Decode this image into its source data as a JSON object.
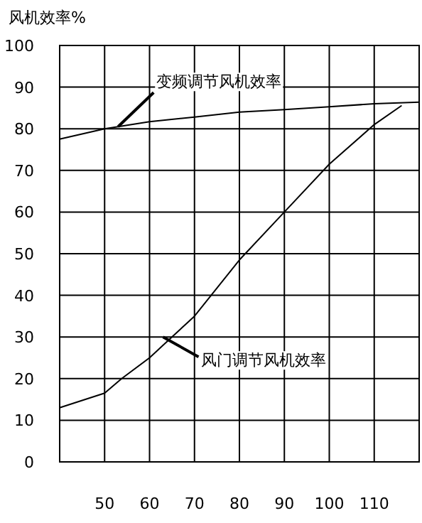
{
  "chart_data": {
    "type": "line",
    "ylabel": "风机效率%",
    "xlim": [
      40,
      120
    ],
    "xticks": [
      50,
      60,
      70,
      80,
      90,
      100,
      110
    ],
    "ylim": [
      0,
      100
    ],
    "yticks": [
      0,
      10,
      20,
      30,
      40,
      50,
      60,
      70,
      80,
      90,
      100
    ],
    "series": [
      {
        "color": "#000000",
        "x": [
          40,
          50,
          60,
          70,
          80,
          90,
          100,
          110,
          120
        ],
        "values": [
          77.5,
          80,
          81.7,
          82.8,
          84,
          84.6,
          85.3,
          86,
          86.4
        ]
      },
      {
        "color": "#000000",
        "x": [
          40,
          50,
          53.8,
          60,
          64,
          70,
          80,
          90,
          100,
          110,
          116
        ],
        "values": [
          13,
          16.5,
          20,
          25,
          29,
          35,
          48.5,
          60,
          71.5,
          81,
          85.5
        ]
      }
    ],
    "annotations": [
      {
        "text": "变频调节风机效率",
        "x": 53,
        "y": 80.5
      },
      {
        "text": "风门调节风机效率",
        "x": 63,
        "y": 30
      }
    ],
    "grid": true,
    "line_style": "solid",
    "marker": "none"
  }
}
